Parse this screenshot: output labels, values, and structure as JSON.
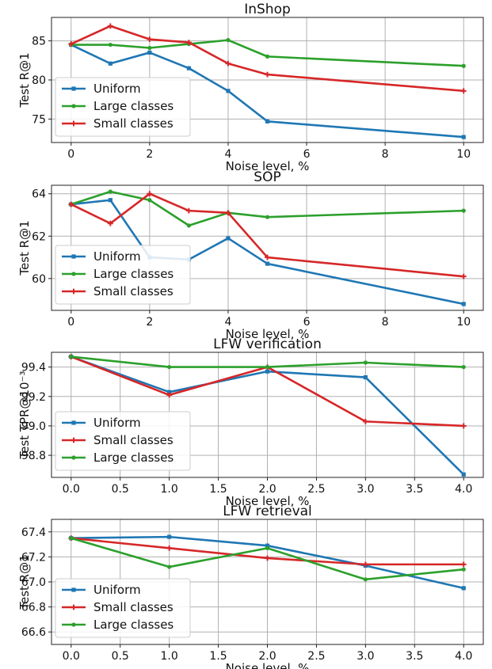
{
  "chart_data": [
    {
      "type": "line",
      "title": "InShop",
      "xlabel": "Noise level, %",
      "ylabel": "Test R@1",
      "xlim": [
        -0.5,
        10.5
      ],
      "ylim": [
        72,
        88
      ],
      "xticks": [
        "0",
        "2",
        "4",
        "6",
        "8",
        "10"
      ],
      "xtick_values": [
        0,
        2,
        4,
        6,
        8,
        10
      ],
      "yticks": [
        "75",
        "80",
        "85"
      ],
      "ytick_values": [
        75,
        80,
        85
      ],
      "grid": true,
      "legend_position": "lower-left",
      "series": [
        {
          "name": "Uniform",
          "color": "#1f77b4",
          "marker": "square",
          "x": [
            0,
            1,
            2,
            3,
            4,
            5,
            10
          ],
          "values": [
            84.5,
            82.1,
            83.5,
            81.5,
            78.6,
            74.7,
            72.7
          ]
        },
        {
          "name": "Large classes",
          "color": "#2ca02c",
          "marker": "dot",
          "x": [
            0,
            1,
            2,
            3,
            4,
            5,
            10
          ],
          "values": [
            84.5,
            84.5,
            84.1,
            84.6,
            85.1,
            83.0,
            81.8
          ]
        },
        {
          "name": "Small classes",
          "color": "#d62728",
          "marker": "plus",
          "x": [
            0,
            1,
            2,
            3,
            4,
            5,
            10
          ],
          "values": [
            84.6,
            86.9,
            85.2,
            84.8,
            82.1,
            80.7,
            78.6
          ]
        }
      ]
    },
    {
      "type": "line",
      "title": "SOP",
      "xlabel": "Noise level, %",
      "ylabel": "Test R@1",
      "xlim": [
        -0.5,
        10.5
      ],
      "ylim": [
        58.5,
        64.4
      ],
      "xticks": [
        "0",
        "2",
        "4",
        "6",
        "8",
        "10"
      ],
      "xtick_values": [
        0,
        2,
        4,
        6,
        8,
        10
      ],
      "yticks": [
        "60",
        "62",
        "64"
      ],
      "ytick_values": [
        60,
        62,
        64
      ],
      "grid": true,
      "legend_position": "lower-left",
      "series": [
        {
          "name": "Uniform",
          "color": "#1f77b4",
          "marker": "square",
          "x": [
            0,
            1,
            2,
            3,
            4,
            5,
            10
          ],
          "values": [
            63.5,
            63.7,
            61.0,
            60.9,
            61.9,
            60.7,
            58.8
          ]
        },
        {
          "name": "Large classes",
          "color": "#2ca02c",
          "marker": "dot",
          "x": [
            0,
            1,
            2,
            3,
            4,
            5,
            10
          ],
          "values": [
            63.5,
            64.1,
            63.7,
            62.5,
            63.1,
            62.9,
            63.2
          ]
        },
        {
          "name": "Small classes",
          "color": "#d62728",
          "marker": "plus",
          "x": [
            0,
            1,
            2,
            3,
            4,
            5,
            10
          ],
          "values": [
            63.5,
            62.6,
            64.0,
            63.2,
            63.1,
            61.0,
            60.1
          ]
        }
      ]
    },
    {
      "type": "line",
      "title": "LFW verification",
      "xlabel": "Noise level, %",
      "ylabel": "Test TPR@10⁻³",
      "xlim": [
        -0.2,
        4.2
      ],
      "ylim": [
        98.65,
        99.5
      ],
      "xticks": [
        "0.0",
        "0.5",
        "1.0",
        "1.5",
        "2.0",
        "2.5",
        "3.0",
        "3.5",
        "4.0"
      ],
      "xtick_values": [
        0,
        0.5,
        1,
        1.5,
        2,
        2.5,
        3,
        3.5,
        4
      ],
      "yticks": [
        "98.8",
        "99.0",
        "99.2",
        "99.4"
      ],
      "ytick_values": [
        98.8,
        99.0,
        99.2,
        99.4
      ],
      "grid": true,
      "legend_position": "lower-left",
      "series": [
        {
          "name": "Uniform",
          "color": "#1f77b4",
          "marker": "square",
          "x": [
            0,
            1,
            2,
            3,
            4
          ],
          "values": [
            99.47,
            99.23,
            99.37,
            99.33,
            98.67
          ]
        },
        {
          "name": "Small classes",
          "color": "#d62728",
          "marker": "plus",
          "x": [
            0,
            1,
            2,
            3,
            4
          ],
          "values": [
            99.47,
            99.21,
            99.4,
            99.03,
            99.0
          ]
        },
        {
          "name": "Large classes",
          "color": "#2ca02c",
          "marker": "dot",
          "x": [
            0,
            1,
            2,
            3,
            4
          ],
          "values": [
            99.47,
            99.4,
            99.4,
            99.43,
            99.4
          ]
        }
      ]
    },
    {
      "type": "line",
      "title": "LFW retrieval",
      "xlabel": "Noise level, %",
      "ylabel": "Test R@1",
      "xlim": [
        -0.2,
        4.2
      ],
      "ylim": [
        66.5,
        67.5
      ],
      "xticks": [
        "0.0",
        "0.5",
        "1.0",
        "1.5",
        "2.0",
        "2.5",
        "3.0",
        "3.5",
        "4.0"
      ],
      "xtick_values": [
        0,
        0.5,
        1,
        1.5,
        2,
        2.5,
        3,
        3.5,
        4
      ],
      "yticks": [
        "66.6",
        "66.8",
        "67.0",
        "67.2",
        "67.4"
      ],
      "ytick_values": [
        66.6,
        66.8,
        67.0,
        67.2,
        67.4
      ],
      "grid": true,
      "legend_position": "lower-left",
      "series": [
        {
          "name": "Uniform",
          "color": "#1f77b4",
          "marker": "square",
          "x": [
            0,
            1,
            2,
            3,
            4
          ],
          "values": [
            67.35,
            67.36,
            67.29,
            67.13,
            66.95
          ]
        },
        {
          "name": "Small classes",
          "color": "#d62728",
          "marker": "plus",
          "x": [
            0,
            1,
            2,
            3,
            4
          ],
          "values": [
            67.35,
            67.27,
            67.19,
            67.14,
            67.14
          ]
        },
        {
          "name": "Large classes",
          "color": "#2ca02c",
          "marker": "dot",
          "x": [
            0,
            1,
            2,
            3,
            4
          ],
          "values": [
            67.35,
            67.12,
            67.27,
            67.02,
            67.1
          ]
        }
      ]
    }
  ]
}
